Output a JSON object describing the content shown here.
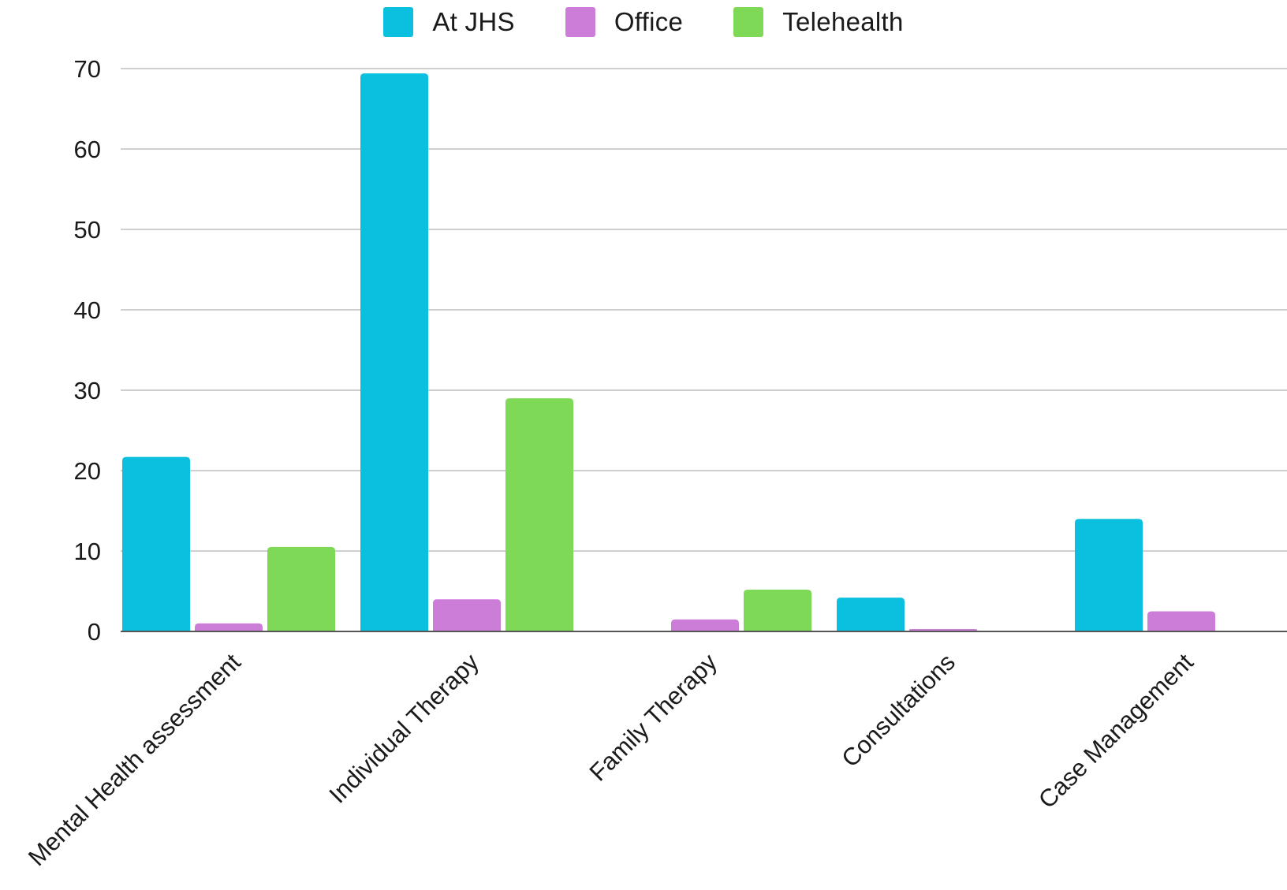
{
  "chart_data": {
    "type": "bar",
    "categories": [
      "Mental Health assessment",
      "Individual Therapy",
      "Family Therapy",
      "Consultations",
      "Case Management"
    ],
    "series": [
      {
        "name": "At JHS",
        "color": "#0bc0df",
        "values": [
          21.7,
          69.4,
          0,
          4.2,
          14
        ]
      },
      {
        "name": "Office",
        "color": "#cc7dd8",
        "values": [
          1,
          4,
          1.5,
          0.3,
          2.5
        ]
      },
      {
        "name": "Telehealth",
        "color": "#7ed957",
        "values": [
          10.5,
          29,
          5.2,
          0,
          0
        ]
      }
    ],
    "yticks": [
      "0",
      "10",
      "20",
      "30",
      "40",
      "50",
      "60",
      "70"
    ],
    "ylim": [
      0,
      70
    ],
    "grid": true,
    "legend_position": "top-center",
    "title": "",
    "xlabel": "",
    "ylabel": ""
  }
}
